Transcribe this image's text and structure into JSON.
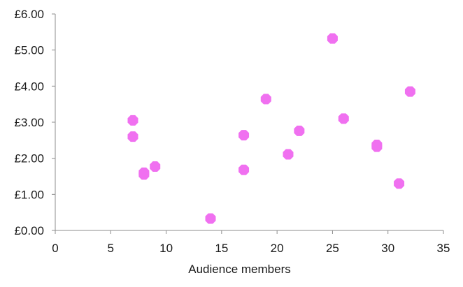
{
  "chart_data": {
    "type": "scatter",
    "title": "",
    "xlabel": "Audience members",
    "ylabel": "",
    "xlim": [
      0,
      35
    ],
    "ylim": [
      0,
      6
    ],
    "x_ticks": [
      0,
      5,
      10,
      15,
      20,
      25,
      30,
      35
    ],
    "y_ticks": [
      0,
      1,
      2,
      3,
      4,
      5,
      6
    ],
    "x_tick_labels": [
      "0",
      "5",
      "10",
      "15",
      "20",
      "25",
      "30",
      "35"
    ],
    "y_tick_labels": [
      "£0.00",
      "£1.00",
      "£2.00",
      "£3.00",
      "£4.00",
      "£5.00",
      "£6.00"
    ],
    "grid": false,
    "marker_color": "#f070f0",
    "series": [
      {
        "points": [
          {
            "x": 7,
            "y": 3.05
          },
          {
            "x": 7,
            "y": 2.6
          },
          {
            "x": 8,
            "y": 1.6
          },
          {
            "x": 8,
            "y": 1.55
          },
          {
            "x": 9,
            "y": 1.77
          },
          {
            "x": 14,
            "y": 0.33
          },
          {
            "x": 17,
            "y": 2.64
          },
          {
            "x": 17,
            "y": 1.68
          },
          {
            "x": 19,
            "y": 3.64
          },
          {
            "x": 21,
            "y": 2.11
          },
          {
            "x": 22,
            "y": 2.76
          },
          {
            "x": 25,
            "y": 5.32
          },
          {
            "x": 26,
            "y": 3.1
          },
          {
            "x": 29,
            "y": 2.37
          },
          {
            "x": 29,
            "y": 2.32
          },
          {
            "x": 31,
            "y": 1.3
          },
          {
            "x": 32,
            "y": 3.85
          }
        ]
      }
    ]
  }
}
